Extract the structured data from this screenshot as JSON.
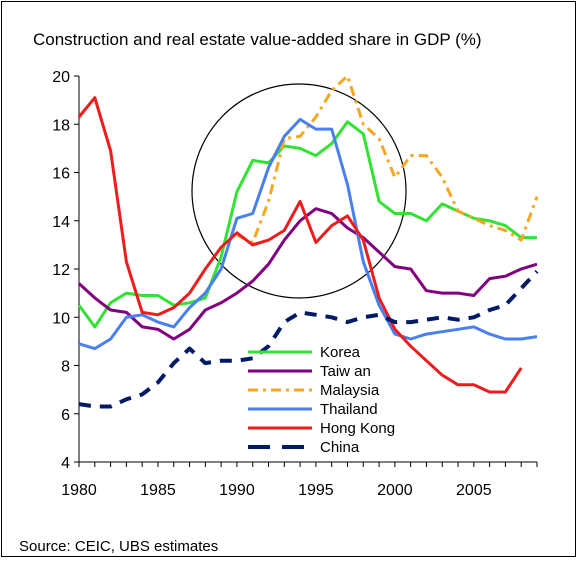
{
  "chart_data": {
    "type": "line",
    "title": "Construction and real estate value-added share in GDP (%)",
    "source": "Source: CEIC, UBS estimates",
    "xlim": [
      1980,
      2009
    ],
    "ylim": [
      4,
      20
    ],
    "x_ticks": [
      1980,
      1985,
      1990,
      1995,
      2000,
      2005
    ],
    "y_ticks": [
      4,
      6,
      8,
      10,
      12,
      14,
      16,
      18,
      20
    ],
    "grid": false,
    "legend_position": "center-bottom",
    "annotation": "circle highlighting 1990-1998 peak",
    "series": [
      {
        "name": "Korea",
        "color": "#33e333",
        "dash": "solid",
        "points": [
          [
            1980,
            10.5
          ],
          [
            1981,
            9.6
          ],
          [
            1982,
            10.6
          ],
          [
            1983,
            11.0
          ],
          [
            1984,
            10.9
          ],
          [
            1985,
            10.9
          ],
          [
            1986,
            10.5
          ],
          [
            1987,
            10.6
          ],
          [
            1988,
            10.8
          ],
          [
            1989,
            12.5
          ],
          [
            1990,
            15.2
          ],
          [
            1991,
            16.5
          ],
          [
            1992,
            16.4
          ],
          [
            1993,
            17.1
          ],
          [
            1994,
            17.0
          ],
          [
            1995,
            16.7
          ],
          [
            1996,
            17.2
          ],
          [
            1997,
            18.1
          ],
          [
            1998,
            17.6
          ],
          [
            1999,
            14.8
          ],
          [
            2000,
            14.3
          ],
          [
            2001,
            14.3
          ],
          [
            2002,
            14.0
          ],
          [
            2003,
            14.7
          ],
          [
            2004,
            14.4
          ],
          [
            2005,
            14.1
          ],
          [
            2006,
            14.0
          ],
          [
            2007,
            13.8
          ],
          [
            2008,
            13.3
          ],
          [
            2009,
            13.3
          ]
        ]
      },
      {
        "name": "Taiw an",
        "color": "#800080",
        "dash": "solid",
        "points": [
          [
            1980,
            11.4
          ],
          [
            1981,
            10.8
          ],
          [
            1982,
            10.3
          ],
          [
            1983,
            10.2
          ],
          [
            1984,
            9.6
          ],
          [
            1985,
            9.5
          ],
          [
            1986,
            9.1
          ],
          [
            1987,
            9.5
          ],
          [
            1988,
            10.3
          ],
          [
            1989,
            10.6
          ],
          [
            1990,
            11.0
          ],
          [
            1991,
            11.5
          ],
          [
            1992,
            12.2
          ],
          [
            1993,
            13.2
          ],
          [
            1994,
            14.0
          ],
          [
            1995,
            14.5
          ],
          [
            1996,
            14.3
          ],
          [
            1997,
            13.7
          ],
          [
            1998,
            13.3
          ],
          [
            1999,
            12.7
          ],
          [
            2000,
            12.1
          ],
          [
            2001,
            12.0
          ],
          [
            2002,
            11.1
          ],
          [
            2003,
            11.0
          ],
          [
            2004,
            11.0
          ],
          [
            2005,
            10.9
          ],
          [
            2006,
            11.6
          ],
          [
            2007,
            11.7
          ],
          [
            2008,
            12.0
          ],
          [
            2009,
            12.2
          ]
        ]
      },
      {
        "name": "Malaysia",
        "color": "#f5a623",
        "dash": "dashdot",
        "points": [
          [
            1990,
            13.4
          ],
          [
            1991,
            13.1
          ],
          [
            1992,
            14.8
          ],
          [
            1993,
            17.4
          ],
          [
            1994,
            17.5
          ],
          [
            1995,
            18.3
          ],
          [
            1996,
            19.4
          ],
          [
            1997,
            20.0
          ],
          [
            1998,
            18.0
          ],
          [
            1999,
            17.4
          ],
          [
            2000,
            15.8
          ],
          [
            2001,
            16.7
          ],
          [
            2002,
            16.7
          ],
          [
            2003,
            15.8
          ],
          [
            2004,
            14.4
          ],
          [
            2005,
            14.1
          ],
          [
            2006,
            13.8
          ],
          [
            2007,
            13.6
          ],
          [
            2008,
            13.2
          ],
          [
            2009,
            15.0
          ]
        ]
      },
      {
        "name": "Thailand",
        "color": "#4a7ff0",
        "dash": "solid",
        "points": [
          [
            1980,
            8.9
          ],
          [
            1981,
            8.7
          ],
          [
            1982,
            9.1
          ],
          [
            1983,
            10.0
          ],
          [
            1984,
            10.1
          ],
          [
            1985,
            9.8
          ],
          [
            1986,
            9.6
          ],
          [
            1987,
            10.4
          ],
          [
            1988,
            11.0
          ],
          [
            1989,
            12.0
          ],
          [
            1990,
            14.1
          ],
          [
            1991,
            14.3
          ],
          [
            1992,
            16.2
          ],
          [
            1993,
            17.5
          ],
          [
            1994,
            18.2
          ],
          [
            1995,
            17.8
          ],
          [
            1996,
            17.8
          ],
          [
            1997,
            15.5
          ],
          [
            1998,
            12.3
          ],
          [
            1999,
            10.5
          ],
          [
            2000,
            9.3
          ],
          [
            2001,
            9.1
          ],
          [
            2002,
            9.3
          ],
          [
            2003,
            9.4
          ],
          [
            2004,
            9.5
          ],
          [
            2005,
            9.6
          ],
          [
            2006,
            9.3
          ],
          [
            2007,
            9.1
          ],
          [
            2008,
            9.1
          ],
          [
            2009,
            9.2
          ]
        ]
      },
      {
        "name": "Hong Kong",
        "color": "#ee1c1c",
        "dash": "solid",
        "points": [
          [
            1980,
            18.3
          ],
          [
            1981,
            19.1
          ],
          [
            1982,
            16.9
          ],
          [
            1983,
            12.3
          ],
          [
            1984,
            10.2
          ],
          [
            1985,
            10.1
          ],
          [
            1986,
            10.4
          ],
          [
            1987,
            11.0
          ],
          [
            1988,
            12.0
          ],
          [
            1989,
            12.9
          ],
          [
            1990,
            13.5
          ],
          [
            1991,
            13.0
          ],
          [
            1992,
            13.2
          ],
          [
            1993,
            13.6
          ],
          [
            1994,
            14.8
          ],
          [
            1995,
            13.1
          ],
          [
            1996,
            13.8
          ],
          [
            1997,
            14.2
          ],
          [
            1998,
            13.2
          ],
          [
            1999,
            10.8
          ],
          [
            2000,
            9.5
          ],
          [
            2001,
            8.8
          ],
          [
            2002,
            8.2
          ],
          [
            2003,
            7.6
          ],
          [
            2004,
            7.2
          ],
          [
            2005,
            7.2
          ],
          [
            2006,
            6.9
          ],
          [
            2007,
            6.9
          ],
          [
            2008,
            7.9
          ]
        ]
      },
      {
        "name": "China",
        "color": "#001a66",
        "dash": "dashed",
        "points": [
          [
            1980,
            6.4
          ],
          [
            1981,
            6.3
          ],
          [
            1982,
            6.3
          ],
          [
            1983,
            6.6
          ],
          [
            1984,
            6.8
          ],
          [
            1985,
            7.3
          ],
          [
            1986,
            8.1
          ],
          [
            1987,
            8.7
          ],
          [
            1988,
            8.1
          ],
          [
            1989,
            8.2
          ],
          [
            1990,
            8.2
          ],
          [
            1991,
            8.3
          ],
          [
            1992,
            8.8
          ],
          [
            1993,
            9.8
          ],
          [
            1994,
            10.2
          ],
          [
            1995,
            10.1
          ],
          [
            1996,
            10.0
          ],
          [
            1997,
            9.8
          ],
          [
            1998,
            10.0
          ],
          [
            1999,
            10.1
          ],
          [
            2000,
            9.8
          ],
          [
            2001,
            9.8
          ],
          [
            2002,
            9.9
          ],
          [
            2003,
            10.0
          ],
          [
            2004,
            9.9
          ],
          [
            2005,
            10.0
          ],
          [
            2006,
            10.3
          ],
          [
            2007,
            10.5
          ],
          [
            2008,
            11.2
          ],
          [
            2009,
            11.9
          ]
        ]
      }
    ]
  }
}
